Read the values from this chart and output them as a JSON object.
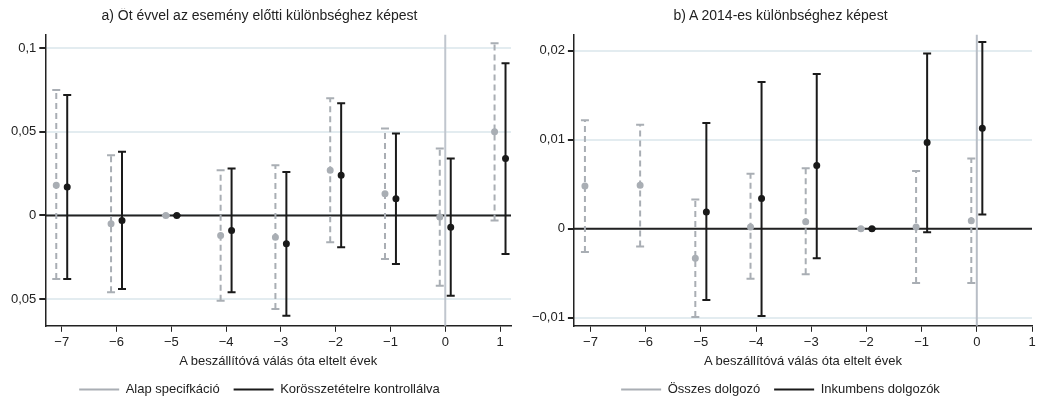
{
  "chart_data": [
    {
      "type": "scatter",
      "title": "a) Öt évvel az esemény előtti különbséghez képest",
      "xlabel": "A beszállítóvá válás óta eltelt évek",
      "xlim": [
        -7.3,
        1.2
      ],
      "xticks": [
        {
          "value": -7,
          "label": "−7"
        },
        {
          "value": -6,
          "label": "−6"
        },
        {
          "value": -5,
          "label": "−5"
        },
        {
          "value": -4,
          "label": "−4"
        },
        {
          "value": -3,
          "label": "−3"
        },
        {
          "value": -2,
          "label": "−2"
        },
        {
          "value": -1,
          "label": "−1"
        },
        {
          "value": 0,
          "label": "0"
        },
        {
          "value": 1,
          "label": "1"
        }
      ],
      "ylim": [
        -0.066,
        0.108
      ],
      "yticks": [
        {
          "value": -0.05,
          "label": "0,05"
        },
        0,
        {
          "value": 0.05,
          "label": "0,05"
        },
        {
          "value": 0.1,
          "label": "0,1"
        }
      ],
      "grid": "y",
      "legend": "bottom",
      "marker": "circle",
      "ref_lines": [
        {
          "axis": "y",
          "value": 0,
          "color": "#222222"
        },
        {
          "axis": "x",
          "value": 0,
          "color": "#c0c6ce"
        }
      ],
      "series": [
        {
          "name": "Alap specifkáció",
          "color": "#a9aeb4",
          "line_style": "dashed",
          "x": [
            -7.1,
            -6.1,
            -5.1,
            -4.1,
            -3.1,
            -2.1,
            -1.1,
            -0.1,
            0.9
          ],
          "values": [
            0.018,
            -0.005,
            0,
            -0.012,
            -0.013,
            0.027,
            0.013,
            -0.001,
            0.05
          ],
          "errors": [
            [
              -0.038,
              0.075
            ],
            [
              -0.046,
              0.036
            ],
            [
              0,
              0
            ],
            [
              -0.051,
              0.027
            ],
            [
              -0.056,
              0.03
            ],
            [
              -0.016,
              0.07
            ],
            [
              -0.026,
              0.052
            ],
            [
              -0.042,
              0.04
            ],
            [
              -0.003,
              0.103
            ]
          ]
        },
        {
          "name": "Korösszetételre kontrollálva",
          "color": "#1a1a1a",
          "line_style": "solid",
          "x": [
            -6.9,
            -5.9,
            -4.9,
            -3.9,
            -2.9,
            -1.9,
            -0.9,
            0.1,
            1.1
          ],
          "values": [
            0.017,
            -0.003,
            0,
            -0.009,
            -0.017,
            0.024,
            0.01,
            -0.007,
            0.034
          ],
          "errors": [
            [
              -0.038,
              0.072
            ],
            [
              -0.044,
              0.038
            ],
            [
              0,
              0
            ],
            [
              -0.046,
              0.028
            ],
            [
              -0.06,
              0.026
            ],
            [
              -0.019,
              0.067
            ],
            [
              -0.029,
              0.049
            ],
            [
              -0.048,
              0.034
            ],
            [
              -0.023,
              0.091
            ]
          ]
        }
      ]
    },
    {
      "type": "scatter",
      "title": "b) A 2014-es különbséghez képest",
      "xlabel": "A beszállítóvá válás óta eltelt évek",
      "xlim": [
        -7.3,
        1
      ],
      "xticks": [
        {
          "value": -7,
          "label": "−7"
        },
        {
          "value": -6,
          "label": "−6"
        },
        {
          "value": -5,
          "label": "−5"
        },
        {
          "value": -4,
          "label": "−4"
        },
        {
          "value": -3,
          "label": "−3"
        },
        {
          "value": -2,
          "label": "−2"
        },
        {
          "value": -1,
          "label": "−1"
        },
        {
          "value": 0,
          "label": "0"
        },
        {
          "value": 1,
          "label": "1"
        }
      ],
      "ylim": [
        -0.0109,
        0.0218
      ],
      "yticks": [
        {
          "value": -0.01,
          "label": "−0,01"
        },
        0,
        {
          "value": 0.01,
          "label": "0,01"
        },
        {
          "value": 0.02,
          "label": "0,02"
        }
      ],
      "grid": "y",
      "legend": "bottom",
      "marker": "circle",
      "ref_lines": [
        {
          "axis": "y",
          "value": 0,
          "color": "#222222"
        },
        {
          "axis": "x",
          "value": 0,
          "color": "#b8bec6"
        }
      ],
      "series": [
        {
          "name": "Összes dolgozó",
          "color": "#a9aeb4",
          "line_style": "dashed",
          "x": [
            -7.1,
            -6.1,
            -5.1,
            -4.1,
            -3.1,
            -2.1,
            -1.1,
            -0.1
          ],
          "values": [
            0.0048,
            0.0049,
            -0.0033,
            0.0002,
            0.0008,
            0,
            0.0002,
            0.0009
          ],
          "errors": [
            [
              -0.0026,
              0.0122
            ],
            [
              -0.002,
              0.0117
            ],
            [
              -0.0099,
              0.0033
            ],
            [
              -0.0056,
              0.0062
            ],
            [
              -0.0051,
              0.0068
            ],
            [
              0,
              0
            ],
            [
              -0.0061,
              0.0065
            ],
            [
              -0.0061,
              0.0079
            ]
          ]
        },
        {
          "name": "Inkumbens dolgozók",
          "color": "#1a1a1a",
          "line_style": "solid",
          "x": [
            null,
            null,
            -4.9,
            -3.9,
            -2.9,
            -1.9,
            -0.9,
            0.1
          ],
          "values": [
            null,
            null,
            0.0019,
            0.0034,
            0.0071,
            0,
            0.0097,
            0.0113
          ],
          "errors": [
            null,
            null,
            [
              -0.008,
              0.0119
            ],
            [
              -0.0098,
              0.0165
            ],
            [
              -0.0033,
              0.0174
            ],
            [
              0,
              0
            ],
            [
              -0.0004,
              0.0197
            ],
            [
              0.0016,
              0.021
            ]
          ]
        }
      ]
    }
  ]
}
